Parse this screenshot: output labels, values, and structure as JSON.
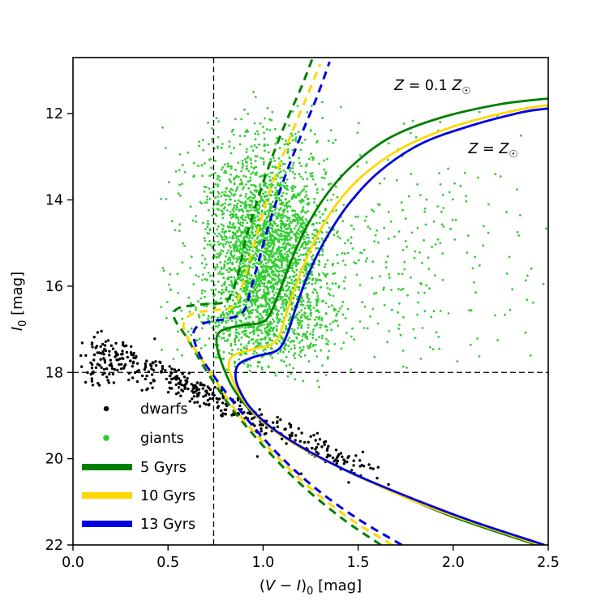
{
  "figure": {
    "background": "#ffffff"
  },
  "chart_data": {
    "type": "scatter",
    "title": "",
    "xlabel_parts": [
      {
        "t": "("
      },
      {
        "t": "V",
        "i": true
      },
      {
        "t": " − "
      },
      {
        "t": "I",
        "i": true
      },
      {
        "t": ")"
      },
      {
        "t": "0",
        "sub": true
      },
      {
        "t": " [mag]"
      }
    ],
    "ylabel_parts": [
      {
        "t": "I",
        "i": true
      },
      {
        "t": "0",
        "sub": true
      },
      {
        "t": " [mag]"
      }
    ],
    "xlim": [
      0.0,
      2.5
    ],
    "ylim_display": [
      22,
      10.7
    ],
    "x_ticks": [
      "0.0",
      "0.5",
      "1.0",
      "1.5",
      "2.0",
      "2.5"
    ],
    "x_tick_values": [
      0,
      0.5,
      1.0,
      1.5,
      2.0,
      2.5
    ],
    "y_ticks": [
      "12",
      "14",
      "16",
      "18",
      "20",
      "22"
    ],
    "y_tick_values": [
      12,
      14,
      16,
      18,
      20,
      22
    ],
    "grid": false,
    "reference_lines": {
      "vertical_x": 0.74,
      "horizontal_y": 18,
      "color": "#000000",
      "dash": "7 4",
      "width": 1.3
    },
    "annotations": [
      {
        "name": "label-z-0p1",
        "x": 1.69,
        "y": 11.45,
        "parts": [
          {
            "t": "Z",
            "i": true
          },
          {
            "t": " = 0.1 "
          },
          {
            "t": "Z",
            "i": true
          },
          {
            "t": "☉",
            "sub": true
          }
        ]
      },
      {
        "name": "label-z-solar",
        "x": 2.08,
        "y": 12.92,
        "parts": [
          {
            "t": "Z",
            "i": true
          },
          {
            "t": " = "
          },
          {
            "t": "Z",
            "i": true
          },
          {
            "t": "☉",
            "sub": true
          }
        ]
      }
    ],
    "isochrones": [
      {
        "id": "5gyr-z0p1",
        "label": "5 Gyrs",
        "metallicity": "0.1 Zsun",
        "age_gyr": 5,
        "color": "#008000",
        "dashed": true,
        "width": 3,
        "points": [
          [
            1.62,
            22.0
          ],
          [
            1.42,
            21.4
          ],
          [
            1.2,
            20.6
          ],
          [
            1.0,
            19.7
          ],
          [
            0.83,
            18.8
          ],
          [
            0.7,
            17.95
          ],
          [
            0.6,
            17.2
          ],
          [
            0.545,
            16.85
          ],
          [
            0.53,
            16.65
          ],
          [
            0.56,
            16.5
          ],
          [
            0.68,
            16.42
          ],
          [
            0.79,
            16.38
          ],
          [
            0.83,
            16.2
          ],
          [
            0.87,
            15.7
          ],
          [
            0.91,
            14.9
          ],
          [
            0.97,
            14.0
          ],
          [
            1.04,
            13.1
          ],
          [
            1.12,
            12.2
          ],
          [
            1.2,
            11.4
          ],
          [
            1.26,
            10.72
          ]
        ]
      },
      {
        "id": "10gyr-z0p1",
        "label": "10 Gyrs",
        "metallicity": "0.1 Zsun",
        "age_gyr": 10,
        "color": "#FFD700",
        "dashed": true,
        "width": 3,
        "points": [
          [
            1.68,
            22.0
          ],
          [
            1.46,
            21.4
          ],
          [
            1.24,
            20.65
          ],
          [
            1.04,
            19.8
          ],
          [
            0.86,
            18.9
          ],
          [
            0.73,
            18.05
          ],
          [
            0.635,
            17.42
          ],
          [
            0.585,
            17.02
          ],
          [
            0.59,
            16.78
          ],
          [
            0.64,
            16.62
          ],
          [
            0.74,
            16.56
          ],
          [
            0.83,
            16.5
          ],
          [
            0.865,
            16.33
          ],
          [
            0.9,
            15.85
          ],
          [
            0.95,
            15.05
          ],
          [
            1.01,
            14.15
          ],
          [
            1.08,
            13.25
          ],
          [
            1.16,
            12.35
          ],
          [
            1.24,
            11.5
          ],
          [
            1.3,
            10.85
          ]
        ]
      },
      {
        "id": "13gyr-z0p1",
        "label": "13 Gyrs",
        "metallicity": "0.1 Zsun",
        "age_gyr": 13,
        "color": "#0000E0",
        "dashed": true,
        "width": 3,
        "points": [
          [
            1.73,
            22.0
          ],
          [
            1.5,
            21.4
          ],
          [
            1.28,
            20.7
          ],
          [
            1.08,
            19.9
          ],
          [
            0.9,
            19.0
          ],
          [
            0.76,
            18.2
          ],
          [
            0.67,
            17.62
          ],
          [
            0.635,
            17.18
          ],
          [
            0.65,
            16.95
          ],
          [
            0.72,
            16.82
          ],
          [
            0.83,
            16.74
          ],
          [
            0.9,
            16.56
          ],
          [
            0.94,
            16.0
          ],
          [
            0.99,
            15.2
          ],
          [
            1.05,
            14.3
          ],
          [
            1.12,
            13.4
          ],
          [
            1.2,
            12.5
          ],
          [
            1.28,
            11.65
          ],
          [
            1.35,
            10.8
          ]
        ]
      },
      {
        "id": "5gyr-zsun",
        "label": "5 Gyrs",
        "metallicity": "Zsun",
        "age_gyr": 5,
        "color": "#008000",
        "dashed": false,
        "width": 2.8,
        "points": [
          [
            2.44,
            22.0
          ],
          [
            2.0,
            21.35
          ],
          [
            1.7,
            20.8
          ],
          [
            1.4,
            20.2
          ],
          [
            1.15,
            19.6
          ],
          [
            0.95,
            18.95
          ],
          [
            0.84,
            18.35
          ],
          [
            0.78,
            17.75
          ],
          [
            0.755,
            17.3
          ],
          [
            0.775,
            17.05
          ],
          [
            0.87,
            16.92
          ],
          [
            0.98,
            16.86
          ],
          [
            1.03,
            16.7
          ],
          [
            1.08,
            16.2
          ],
          [
            1.14,
            15.5
          ],
          [
            1.22,
            14.7
          ],
          [
            1.33,
            13.9
          ],
          [
            1.47,
            13.2
          ],
          [
            1.67,
            12.55
          ],
          [
            1.93,
            12.1
          ],
          [
            2.25,
            11.78
          ],
          [
            2.5,
            11.65
          ]
        ]
      },
      {
        "id": "10gyr-zsun",
        "label": "10 Gyrs",
        "metallicity": "Zsun",
        "age_gyr": 10,
        "color": "#FFD700",
        "dashed": false,
        "width": 2.8,
        "points": [
          [
            2.46,
            22.0
          ],
          [
            2.05,
            21.4
          ],
          [
            1.75,
            20.9
          ],
          [
            1.45,
            20.3
          ],
          [
            1.2,
            19.75
          ],
          [
            1.0,
            19.15
          ],
          [
            0.89,
            18.6
          ],
          [
            0.835,
            18.12
          ],
          [
            0.82,
            17.82
          ],
          [
            0.845,
            17.6
          ],
          [
            0.95,
            17.46
          ],
          [
            1.04,
            17.36
          ],
          [
            1.085,
            17.15
          ],
          [
            1.125,
            16.6
          ],
          [
            1.18,
            15.9
          ],
          [
            1.26,
            15.05
          ],
          [
            1.37,
            14.2
          ],
          [
            1.52,
            13.45
          ],
          [
            1.73,
            12.8
          ],
          [
            2.0,
            12.3
          ],
          [
            2.3,
            11.95
          ],
          [
            2.5,
            11.8
          ]
        ]
      },
      {
        "id": "13gyr-zsun",
        "label": "13 Gyrs",
        "metallicity": "Zsun",
        "age_gyr": 13,
        "color": "#0000E0",
        "dashed": false,
        "width": 2.8,
        "points": [
          [
            2.48,
            22.0
          ],
          [
            2.1,
            21.45
          ],
          [
            1.8,
            20.95
          ],
          [
            1.5,
            20.4
          ],
          [
            1.25,
            19.85
          ],
          [
            1.05,
            19.3
          ],
          [
            0.93,
            18.8
          ],
          [
            0.87,
            18.35
          ],
          [
            0.855,
            18.05
          ],
          [
            0.875,
            17.8
          ],
          [
            0.96,
            17.63
          ],
          [
            1.06,
            17.52
          ],
          [
            1.105,
            17.33
          ],
          [
            1.14,
            16.95
          ],
          [
            1.18,
            16.4
          ],
          [
            1.24,
            15.7
          ],
          [
            1.33,
            14.9
          ],
          [
            1.45,
            14.1
          ],
          [
            1.61,
            13.35
          ],
          [
            1.83,
            12.7
          ],
          [
            2.1,
            12.27
          ],
          [
            2.36,
            11.97
          ],
          [
            2.5,
            11.88
          ]
        ]
      }
    ],
    "scatter_model": {
      "seed": 7,
      "giants": {
        "label": "giants",
        "color": "#32CD32",
        "radius": 1.4,
        "xmin": 0.45,
        "xmax": 2.49,
        "clusters": [
          {
            "count": 2100,
            "cx": 1.02,
            "cy": 15.3,
            "sx": 0.155,
            "sy": 1.0,
            "ymin": 11.6,
            "ymax": 17.9
          },
          {
            "count": 550,
            "cx": 1.0,
            "cy": 16.9,
            "sx": 0.21,
            "sy": 0.55,
            "ymin": 14.5,
            "ymax": 18.35
          },
          {
            "count": 320,
            "cx": 0.97,
            "cy": 13.5,
            "sx": 0.21,
            "sy": 0.8,
            "ymin": 11.4,
            "ymax": 15.2
          },
          {
            "count": 330,
            "cx": 1.5,
            "cy": 15.3,
            "sx": 0.45,
            "sy": 1.6,
            "ymin": 11.5,
            "ymax": 17.9
          },
          {
            "count": 60,
            "cx": 2.15,
            "cy": 15.2,
            "sx": 0.28,
            "sy": 1.9,
            "ymin": 11.5,
            "ymax": 17.9
          }
        ]
      },
      "dwarfs": {
        "label": "dwarfs",
        "color": "#000000",
        "radius": 1.7,
        "xmin": 0.02,
        "xmax": 2.45,
        "clusters": [
          {
            "count": 120,
            "cx": 0.2,
            "cy": 17.72,
            "sx": 0.11,
            "sy": 0.27,
            "ymin": 17.0,
            "ymax": 18.4
          },
          {
            "count": 40,
            "cx": 0.42,
            "cy": 18.05,
            "sx": 0.08,
            "sy": 0.2,
            "ymin": 17.5,
            "ymax": 18.6
          }
        ],
        "band": {
          "count": 270,
          "x0": 0.5,
          "x1": 1.56,
          "y0": 18.15,
          "slope": 2.0,
          "sy": 0.16,
          "skew": 1.3
        },
        "extra_points": [
          [
            1.6,
            20.45
          ],
          [
            1.66,
            20.6
          ],
          [
            1.9,
            21.15
          ],
          [
            1.45,
            20.55
          ],
          [
            1.52,
            20.15
          ],
          [
            0.97,
            19.95
          ],
          [
            1.2,
            20.35
          ]
        ]
      }
    },
    "legend": {
      "position": "lower-left",
      "items": [
        {
          "label": "dwarfs",
          "marker": "dot",
          "color": "#000000",
          "size": 3.2
        },
        {
          "label": "giants",
          "marker": "dot",
          "color": "#32CD32",
          "size": 3.8
        },
        {
          "label": "5 Gyrs",
          "marker": "line",
          "color": "#008000",
          "size": 8
        },
        {
          "label": "10 Gyrs",
          "marker": "line",
          "color": "#FFD700",
          "size": 8
        },
        {
          "label": "13 Gyrs",
          "marker": "line",
          "color": "#0000E0",
          "size": 8
        }
      ]
    }
  }
}
